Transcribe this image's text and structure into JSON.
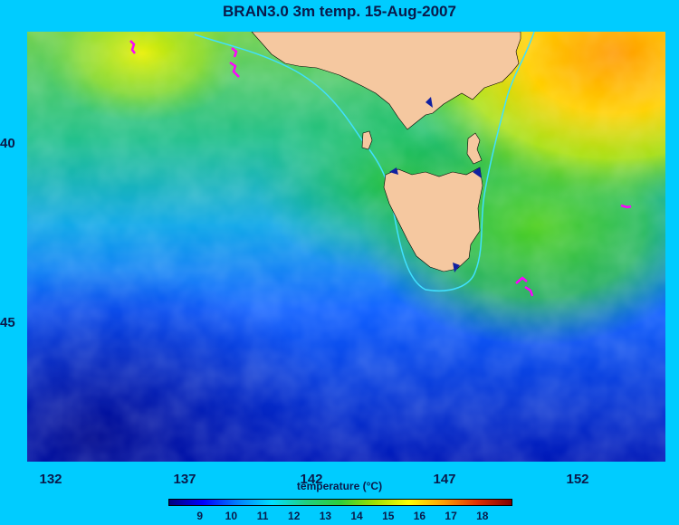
{
  "title": "BRAN3.0 3m temp. 15-Aug-2007",
  "colorbar": {
    "label": "temperature (°C)",
    "ticks": [
      "9",
      "10",
      "11",
      "12",
      "13",
      "14",
      "15",
      "16",
      "17",
      "18"
    ],
    "colors": [
      "#00007f",
      "#0000ff",
      "#0080ff",
      "#00e0ff",
      "#20d080",
      "#2ecf3a",
      "#a0e000",
      "#ffff00",
      "#ffa000",
      "#e03000",
      "#800000"
    ]
  },
  "axes": {
    "x_ticks": [
      "132",
      "137",
      "142",
      "147",
      "152"
    ],
    "y_ticks": [
      "40",
      "45"
    ]
  },
  "map": {
    "land_color": "#f5c8a0",
    "contour_color": "#40e0ff",
    "marker_color": "#ff00ff"
  }
}
